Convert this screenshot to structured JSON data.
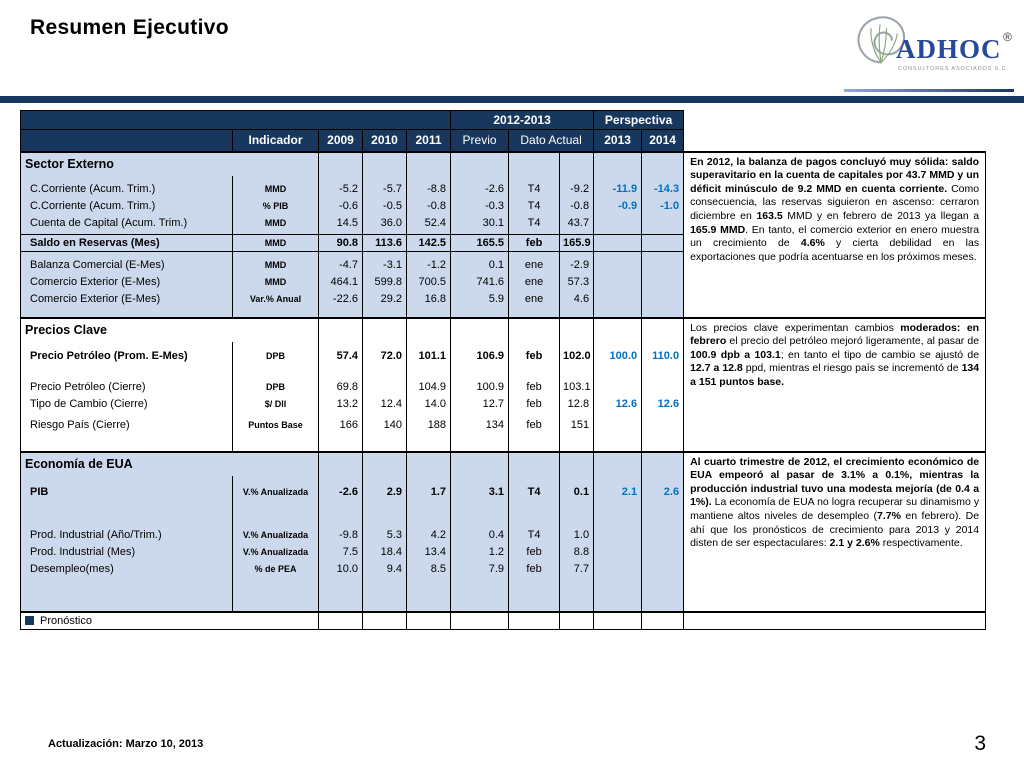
{
  "slide": {
    "title": "Resumen Ejecutivo",
    "footer": "Actualización:  Marzo 10, 2013",
    "page_number": "3"
  },
  "logo": {
    "name": "ADHOC",
    "registered": "®",
    "subtitle": "CONSULTORES ASOCIADOS S.C."
  },
  "colors": {
    "navy": "#17375D",
    "section-blue": "#CCD9EC",
    "forecast": "#0070C0",
    "logo-blue": "#27499B"
  },
  "table": {
    "header": {
      "period_group": "2012-2013",
      "perspective_group": "Perspectiva",
      "columns": [
        "Indicador",
        "2009",
        "2010",
        "2011",
        "Previo",
        "Dato Actual",
        "2013",
        "2014"
      ]
    },
    "legend": "Pronóstico",
    "sections": [
      {
        "name": "Sector Externo",
        "bg": "#CCD9EC",
        "rows": [
          {
            "type": "spacer",
            "h": 5
          },
          {
            "type": "data",
            "label": "C.Corriente (Acum. Trim.)",
            "unit": "MMD",
            "values": [
              "-5.2",
              "-5.7",
              "-8.8",
              "-2.6",
              "T4",
              "-9.2",
              "-11.9",
              "-14.3"
            ]
          },
          {
            "type": "data",
            "label": "C.Corriente (Acum. Trim.)",
            "unit": "% PIB",
            "values": [
              "-0.6",
              "-0.5",
              "-0.8",
              "-0.3",
              "T4",
              "-0.8",
              "-0.9",
              "-1.0"
            ]
          },
          {
            "type": "data",
            "label": "Cuenta de Capital (Acum. Trim.)",
            "unit": "MMD",
            "values": [
              "14.5",
              "36.0",
              "52.4",
              "30.1",
              "T4",
              "43.7",
              "",
              ""
            ]
          },
          {
            "type": "spacer",
            "h": 3
          },
          {
            "type": "data",
            "label": "Saldo en Reservas (Mes)",
            "unit": "MMD",
            "values": [
              "90.8",
              "113.6",
              "142.5",
              "165.5",
              "feb",
              "165.9",
              "",
              ""
            ],
            "bold": true,
            "boxed": true
          },
          {
            "type": "spacer",
            "h": 5
          },
          {
            "type": "data",
            "label": "Balanza Comercial (E-Mes)",
            "unit": "MMD",
            "values": [
              "-4.7",
              "-3.1",
              "-1.2",
              "0.1",
              "ene",
              "-2.9",
              "",
              ""
            ]
          },
          {
            "type": "data",
            "label": "Comercio Exterior (E-Mes)",
            "unit": "MMD",
            "values": [
              "464.1",
              "599.8",
              "700.5",
              "741.6",
              "ene",
              "57.3",
              "",
              ""
            ]
          },
          {
            "type": "data",
            "label": "Comercio Exterior (E-Mes)",
            "unit": "Var.% Anual",
            "values": [
              "-22.6",
              "29.2",
              "16.8",
              "5.9",
              "ene",
              "4.6",
              "",
              ""
            ]
          },
          {
            "type": "spacer",
            "h": 10
          }
        ],
        "comment": [
          {
            "b": true,
            "t": "En 2012, la balanza de pagos concluyó muy sólida: saldo superavitario en la cuenta de capitales por 43.7 MMD y un déficit minúsculo de 9.2 MMD en cuenta corriente."
          },
          {
            "b": false,
            "t": " Como consecuencia, las reservas siguieron en ascenso: cerraron diciembre en "
          },
          {
            "b": true,
            "t": "163.5"
          },
          {
            "b": false,
            "t": " MMD y en febrero de 2013 ya llegan a "
          },
          {
            "b": true,
            "t": "165.9 MMD"
          },
          {
            "b": false,
            "t": ". En tanto, el comercio exterior en enero muestra un crecimiento de "
          },
          {
            "b": true,
            "t": "4.6%"
          },
          {
            "b": false,
            "t": " y cierta debilidad en las exportaciones que podría acentuarse en los próximos meses."
          }
        ]
      },
      {
        "name": "Precios Clave",
        "bg": "#FFFFFF",
        "rows": [
          {
            "type": "spacer",
            "h": 6
          },
          {
            "type": "data",
            "label": "Precio Petróleo (Prom. E-Mes)",
            "unit": "DPB",
            "values": [
              "57.4",
              "72.0",
              "101.1",
              "106.9",
              "feb",
              "102.0",
              "100.0",
              "110.0"
            ],
            "bold": true
          },
          {
            "type": "spacer",
            "h": 14
          },
          {
            "type": "data",
            "label": "Precio Petróleo (Cierre)",
            "unit": "DPB",
            "values": [
              "69.8",
              "",
              "104.9",
              "100.9",
              "feb",
              "103.1",
              "",
              ""
            ]
          },
          {
            "type": "data",
            "label": "Tipo de Cambio (Cierre)",
            "unit": "$/ Dll",
            "values": [
              "13.2",
              "12.4",
              "14.0",
              "12.7",
              "feb",
              "12.8",
              "12.6",
              "12.6"
            ]
          },
          {
            "type": "spacer",
            "h": 4
          },
          {
            "type": "data",
            "label": "Riesgo País (Cierre)",
            "unit": "Puntos Base",
            "values": [
              "166",
              "140",
              "188",
              "134",
              "feb",
              "151",
              "",
              ""
            ]
          },
          {
            "type": "spacer",
            "h": 18
          }
        ],
        "comment": [
          {
            "b": false,
            "t": "Los precios clave experimentan cambios "
          },
          {
            "b": true,
            "t": "moderados: en febrero "
          },
          {
            "b": false,
            "t": "el precio del petróleo mejoró ligeramente, al pasar de "
          },
          {
            "b": true,
            "t": "100.9 dpb a 103.1"
          },
          {
            "b": false,
            "t": "; en tanto el tipo de cambio se ajustó de "
          },
          {
            "b": true,
            "t": "12.7 a 12.8 "
          },
          {
            "b": false,
            "t": "ppd, mientras el riesgo país se incrementó de "
          },
          {
            "b": true,
            "t": "134 a 151 puntos base."
          }
        ]
      },
      {
        "name": "Economía de EUA",
        "bg": "#CCD9EC",
        "rows": [
          {
            "type": "spacer",
            "h": 8
          },
          {
            "type": "data",
            "label": "PIB",
            "unit": "V.% Anualizada",
            "values": [
              "-2.6",
              "2.9",
              "1.7",
              "3.1",
              "T4",
              "0.1",
              "2.1",
              "2.6"
            ],
            "bold": true
          },
          {
            "type": "spacer",
            "h": 26
          },
          {
            "type": "data",
            "label": "Prod. Industrial (Año/Trim.)",
            "unit": "V.% Anualizada",
            "values": [
              "-9.8",
              "5.3",
              "4.2",
              "0.4",
              "T4",
              "1.0",
              "",
              ""
            ]
          },
          {
            "type": "data",
            "label": "Prod. Industrial (Mes)",
            "unit": "V.% Anualizada",
            "values": [
              "7.5",
              "18.4",
              "13.4",
              "1.2",
              "feb",
              "8.8",
              "",
              ""
            ]
          },
          {
            "type": "data",
            "label": "Desempleo(mes)",
            "unit": "% de PEA",
            "values": [
              "10.0",
              "9.4",
              "8.5",
              "7.9",
              "feb",
              "7.7",
              "",
              ""
            ]
          },
          {
            "type": "spacer",
            "h": 34
          }
        ],
        "comment": [
          {
            "b": true,
            "t": "Al cuarto trimestre de 2012, el crecimiento económico de EUA empeoró al pasar de 3.1% a 0.1%, mientras la producción industrial tuvo una modesta mejoría (de 0.4 a 1%). "
          },
          {
            "b": false,
            "t": "La economía de EUA no logra recuperar su dinamismo y mantiene altos niveles de desempleo ("
          },
          {
            "b": true,
            "t": "7.7% "
          },
          {
            "b": false,
            "t": "en febrero). De ahí que los pronósticos de crecimiento para 2013 y 2014 disten de ser espectaculares: "
          },
          {
            "b": true,
            "t": "2.1 y 2.6% "
          },
          {
            "b": false,
            "t": "respectivamente."
          }
        ]
      }
    ]
  }
}
